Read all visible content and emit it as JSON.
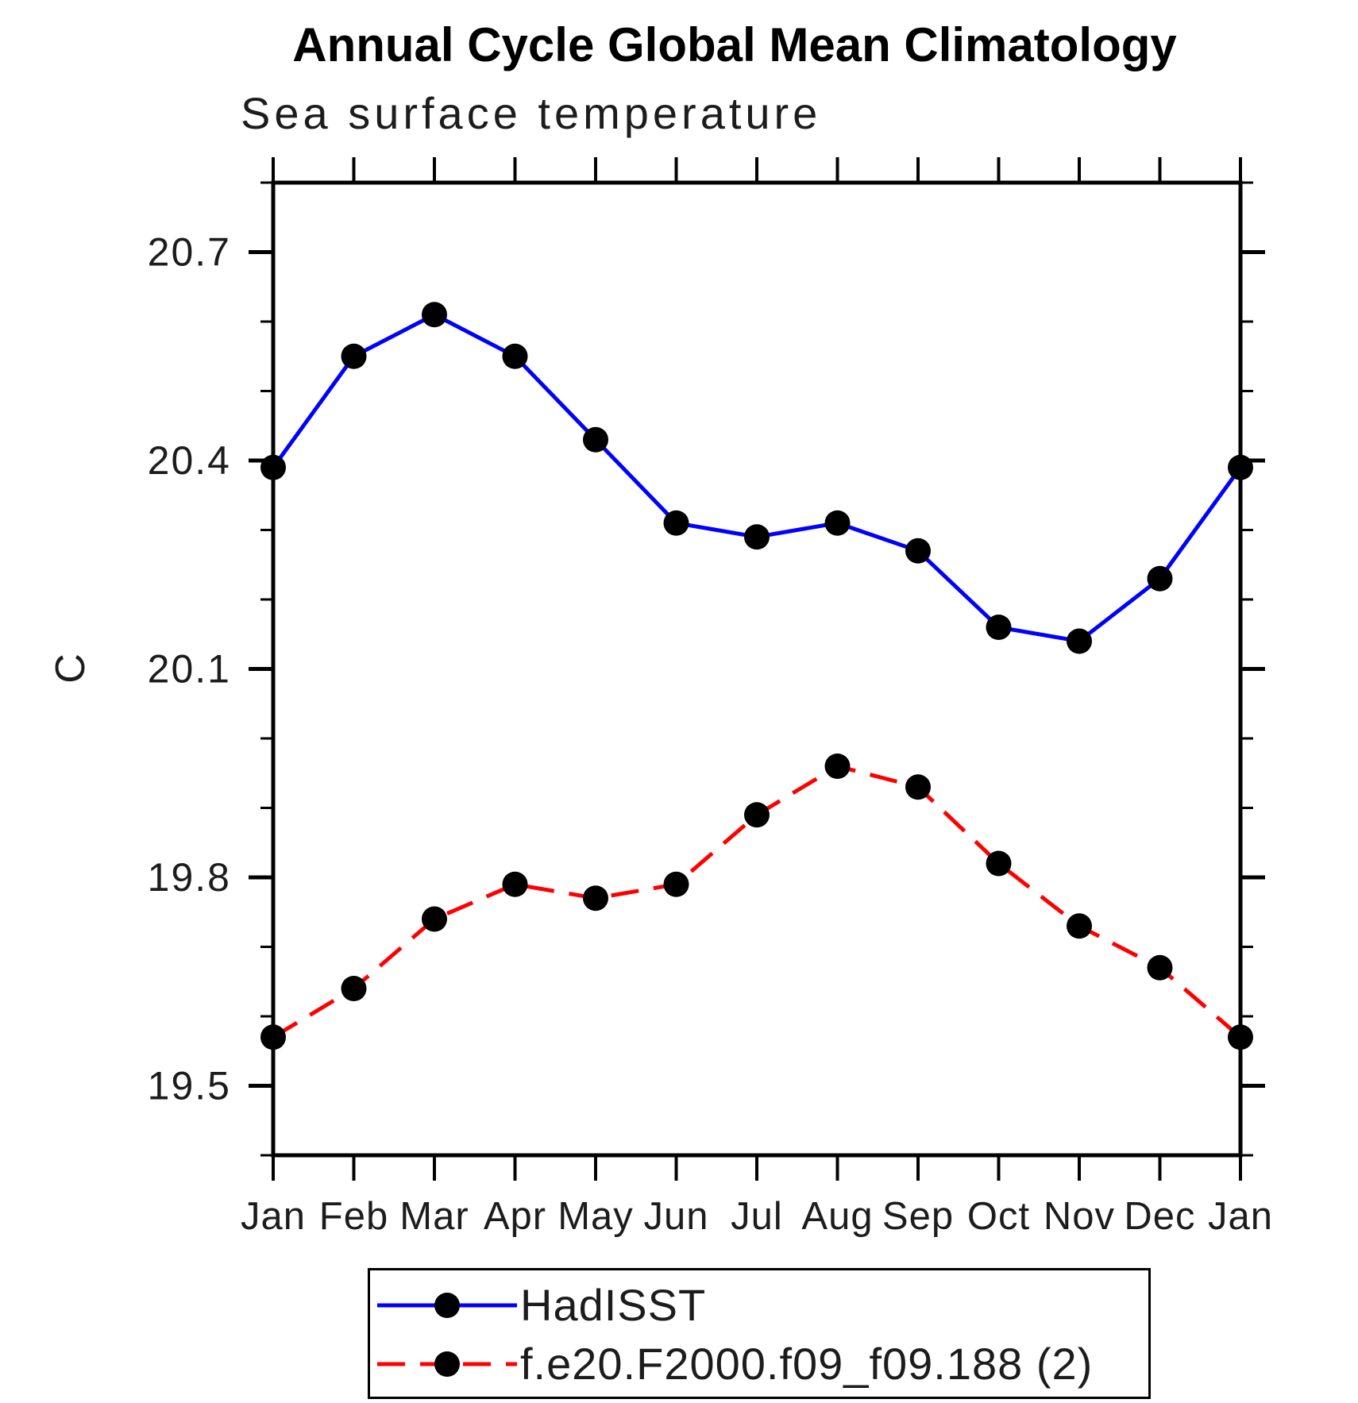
{
  "chart_data": {
    "type": "line",
    "title": "Annual Cycle Global Mean Climatology",
    "subtitle": "Sea surface temperature",
    "ylabel": "C",
    "xlabel": "",
    "categories": [
      "Jan",
      "Feb",
      "Mar",
      "Apr",
      "May",
      "Jun",
      "Jul",
      "Aug",
      "Sep",
      "Oct",
      "Nov",
      "Dec",
      "Jan"
    ],
    "ylim": [
      19.4,
      20.8
    ],
    "yticks_major": [
      "19.5",
      "19.8",
      "20.1",
      "20.4",
      "20.7"
    ],
    "ytick_minor_step": 0.1,
    "grid": false,
    "legend_position": "bottom",
    "axis_color": "#000000",
    "series": [
      {
        "name": "HadISST",
        "line_color": "#0000ff",
        "line_style": "solid",
        "marker": "filled-circle",
        "marker_color": "#000000",
        "values": [
          20.39,
          20.55,
          20.61,
          20.55,
          20.43,
          20.31,
          20.29,
          20.31,
          20.27,
          20.16,
          20.14,
          20.23,
          20.39
        ]
      },
      {
        "name": "f.e20.F2000.f09_f09.188 (2)",
        "line_color": "#ff0000",
        "line_style": "dashed",
        "marker": "filled-circle",
        "marker_color": "#000000",
        "values": [
          19.57,
          19.64,
          19.74,
          19.79,
          19.77,
          19.79,
          19.89,
          19.96,
          19.93,
          19.82,
          19.73,
          19.67,
          19.57
        ]
      }
    ]
  }
}
